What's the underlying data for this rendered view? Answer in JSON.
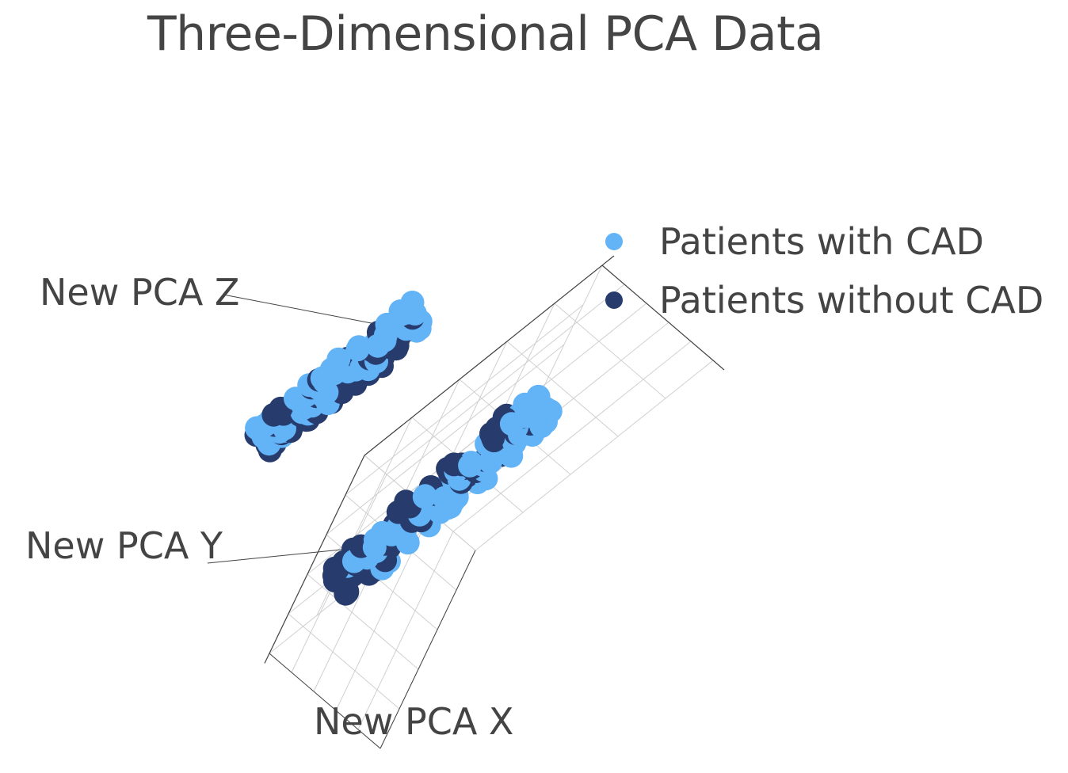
{
  "chart_data": {
    "type": "scatter3d",
    "title": "Three-Dimensional PCA Data",
    "axes": {
      "x_label": "New PCA X",
      "y_label": "New PCA Y",
      "z_label": "New PCA  Z"
    },
    "grid": true,
    "legend_position": "top-right",
    "series": [
      {
        "name": "Patients with CAD",
        "color": "#63b3f7",
        "clusters": [
          {
            "center": [
              0.25,
              0.78,
              0.4
            ],
            "spread": [
              0.3,
              0.06,
              0.05
            ]
          },
          {
            "center": [
              0.72,
              0.22,
              0.45
            ],
            "spread": [
              0.3,
              0.06,
              0.05
            ]
          }
        ]
      },
      {
        "name": "Patients without CAD",
        "color": "#273c6d",
        "clusters": [
          {
            "center": [
              0.22,
              0.8,
              0.38
            ],
            "spread": [
              0.3,
              0.06,
              0.05
            ]
          },
          {
            "center": [
              0.66,
              0.2,
              0.42
            ],
            "spread": [
              0.3,
              0.06,
              0.05
            ]
          }
        ]
      }
    ]
  }
}
